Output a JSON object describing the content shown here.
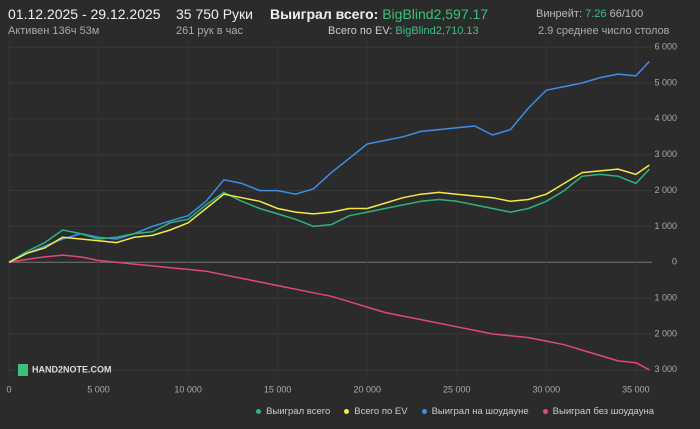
{
  "header": {
    "date_range": "01.12.2025 - 29.12.2025",
    "hands": "35 750 Руки",
    "won_label": "Выиграл всего:",
    "won_value": "BigBlind2,597.17",
    "winrate_label": "Винрейт:",
    "winrate_value": "7.26",
    "winrate_sample": "66/100",
    "active": "Активен 136ч 53м",
    "hands_per_hour": "261 рук в час",
    "ev_label": "Всего по EV:",
    "ev_value": "BigBlind2,710.13",
    "tables": "2.9 среднее число столов",
    "logo": "HAND2NOTE.COM"
  },
  "chart_data": {
    "type": "line",
    "x": [
      0,
      1000,
      2000,
      3000,
      4000,
      5000,
      6000,
      7000,
      8000,
      9000,
      10000,
      11000,
      12000,
      13000,
      14000,
      15000,
      16000,
      17000,
      18000,
      19000,
      20000,
      21000,
      22000,
      23000,
      24000,
      25000,
      26000,
      27000,
      28000,
      29000,
      30000,
      31000,
      32000,
      33000,
      34000,
      35000,
      35750
    ],
    "xlim": [
      0,
      35900
    ],
    "xticks": [
      0,
      {
        "value": 5000,
        "label": "5 000"
      },
      {
        "value": 10000,
        "label": "10 000"
      },
      {
        "value": 15000,
        "label": "15 000"
      },
      {
        "value": 20000,
        "label": "20 000"
      },
      {
        "value": 25000,
        "label": "25 000"
      },
      {
        "value": 30000,
        "label": "30 000"
      },
      {
        "value": 35000,
        "label": "35 000"
      }
    ],
    "ylim": [
      -3200,
      6200
    ],
    "yticks": [
      {
        "value": -3000,
        "label": "3 000"
      },
      {
        "value": -2000,
        "label": "2 000"
      },
      {
        "value": -1000,
        "label": "1 000"
      },
      0,
      {
        "value": 1000,
        "label": "1 000"
      },
      {
        "value": 2000,
        "label": "2 000"
      },
      {
        "value": 3000,
        "label": "3 000"
      },
      {
        "value": 4000,
        "label": "4 000"
      },
      {
        "value": 5000,
        "label": "5 000"
      },
      {
        "value": 6000,
        "label": "6 000"
      }
    ],
    "grid": true,
    "series": [
      {
        "name": "Выиграл всего",
        "color": "#2eb37c",
        "values": [
          0,
          300,
          550,
          900,
          800,
          650,
          700,
          800,
          850,
          1100,
          1200,
          1600,
          1950,
          1700,
          1500,
          1350,
          1200,
          1000,
          1050,
          1300,
          1400,
          1500,
          1600,
          1700,
          1750,
          1700,
          1600,
          1500,
          1400,
          1500,
          1700,
          2000,
          2400,
          2450,
          2400,
          2200,
          2597.17
        ]
      },
      {
        "name": "Всего по EV",
        "color": "#f2ea4a",
        "values": [
          0,
          250,
          400,
          700,
          650,
          600,
          550,
          700,
          750,
          900,
          1100,
          1500,
          1900,
          1800,
          1700,
          1500,
          1400,
          1350,
          1400,
          1500,
          1500,
          1650,
          1800,
          1900,
          1950,
          1900,
          1850,
          1800,
          1700,
          1750,
          1900,
          2200,
          2500,
          2550,
          2600,
          2450,
          2710.13
        ]
      },
      {
        "name": "Выиграл на шоудауне",
        "color": "#3c8fe6",
        "values": [
          0,
          250,
          450,
          650,
          800,
          700,
          650,
          800,
          1000,
          1150,
          1300,
          1700,
          2300,
          2200,
          2000,
          2000,
          1900,
          2050,
          2500,
          2900,
          3300,
          3400,
          3500,
          3650,
          3700,
          3750,
          3800,
          3550,
          3700,
          4300,
          4800,
          4900,
          5000,
          5150,
          5250,
          5200,
          5600
        ]
      },
      {
        "name": "Выиграл без шоудауна",
        "color": "#e2467c",
        "values": [
          0,
          80,
          150,
          200,
          150,
          50,
          0,
          -50,
          -100,
          -150,
          -200,
          -250,
          -350,
          -450,
          -550,
          -650,
          -750,
          -850,
          -950,
          -1100,
          -1250,
          -1400,
          -1500,
          -1600,
          -1700,
          -1800,
          -1900,
          -2000,
          -2050,
          -2100,
          -2200,
          -2300,
          -2450,
          -2600,
          -2750,
          -2800,
          -3000
        ]
      }
    ]
  }
}
